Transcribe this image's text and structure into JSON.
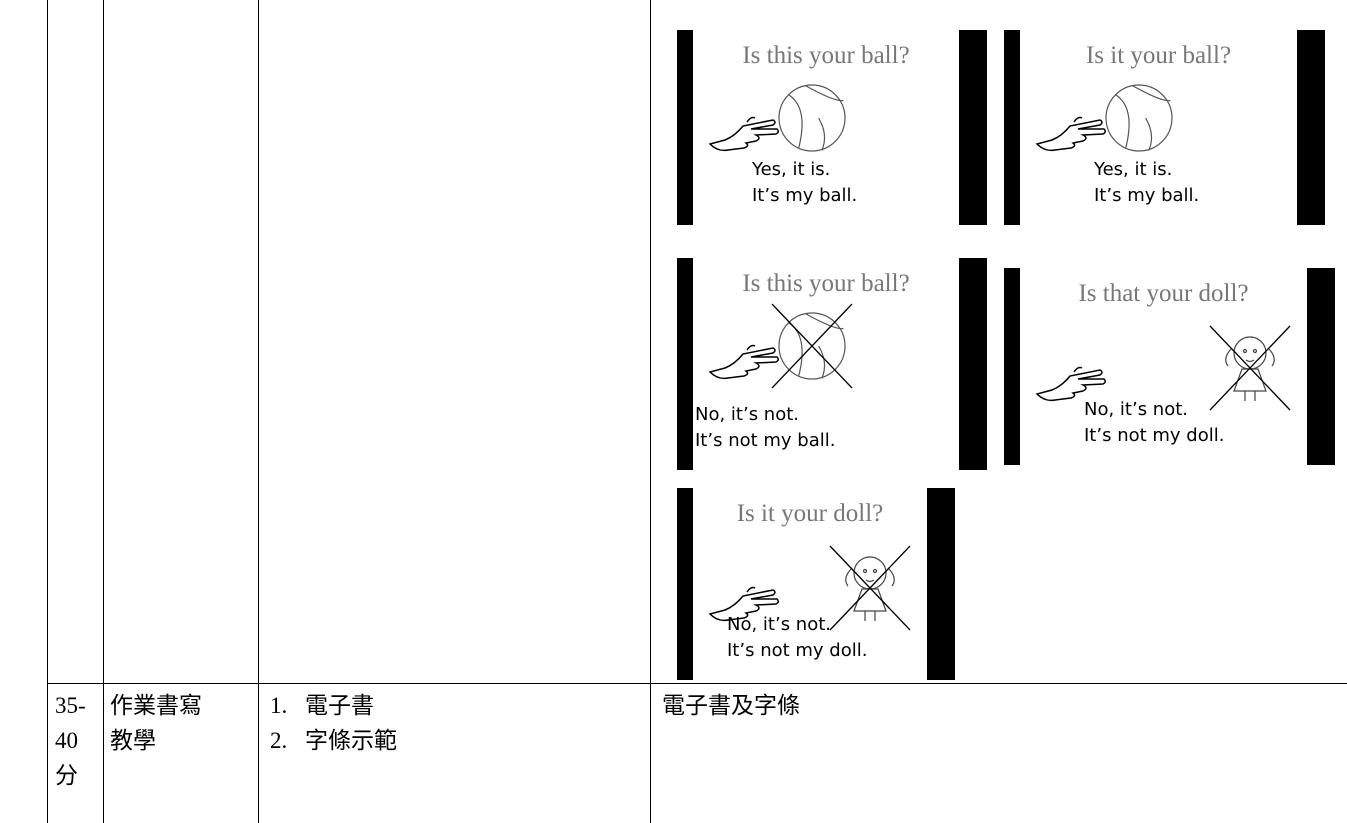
{
  "table": {
    "rows": [
      {
        "slides": [
          {
            "title": "Is this your ball?",
            "lines": [
              "Yes, it is.",
              "It’s my ball."
            ]
          },
          {
            "title": "Is it your ball?",
            "lines": [
              "Yes, it is.",
              "It’s my ball."
            ]
          },
          {
            "title": "Is this your ball?",
            "lines": [
              "No, it’s not.",
              "It’s not my ball."
            ]
          },
          {
            "title": "Is that your doll?",
            "lines": [
              "No, it’s not.",
              "It’s not my doll."
            ]
          },
          {
            "title": "Is it your doll?",
            "lines": [
              "No, it’s not.",
              "It’s not my doll."
            ]
          }
        ]
      },
      {
        "cells": [
          {
            "lines": [
              "35-",
              "40",
              "分"
            ]
          },
          {
            "lines": [
              "作業書寫",
              "教學"
            ]
          },
          {
            "items": [
              {
                "number": "1.",
                "text": "電子書"
              },
              {
                "number": "2.",
                "text": "字條示範"
              }
            ]
          },
          {
            "lines": [
              "電子書及字條"
            ]
          }
        ]
      }
    ]
  }
}
